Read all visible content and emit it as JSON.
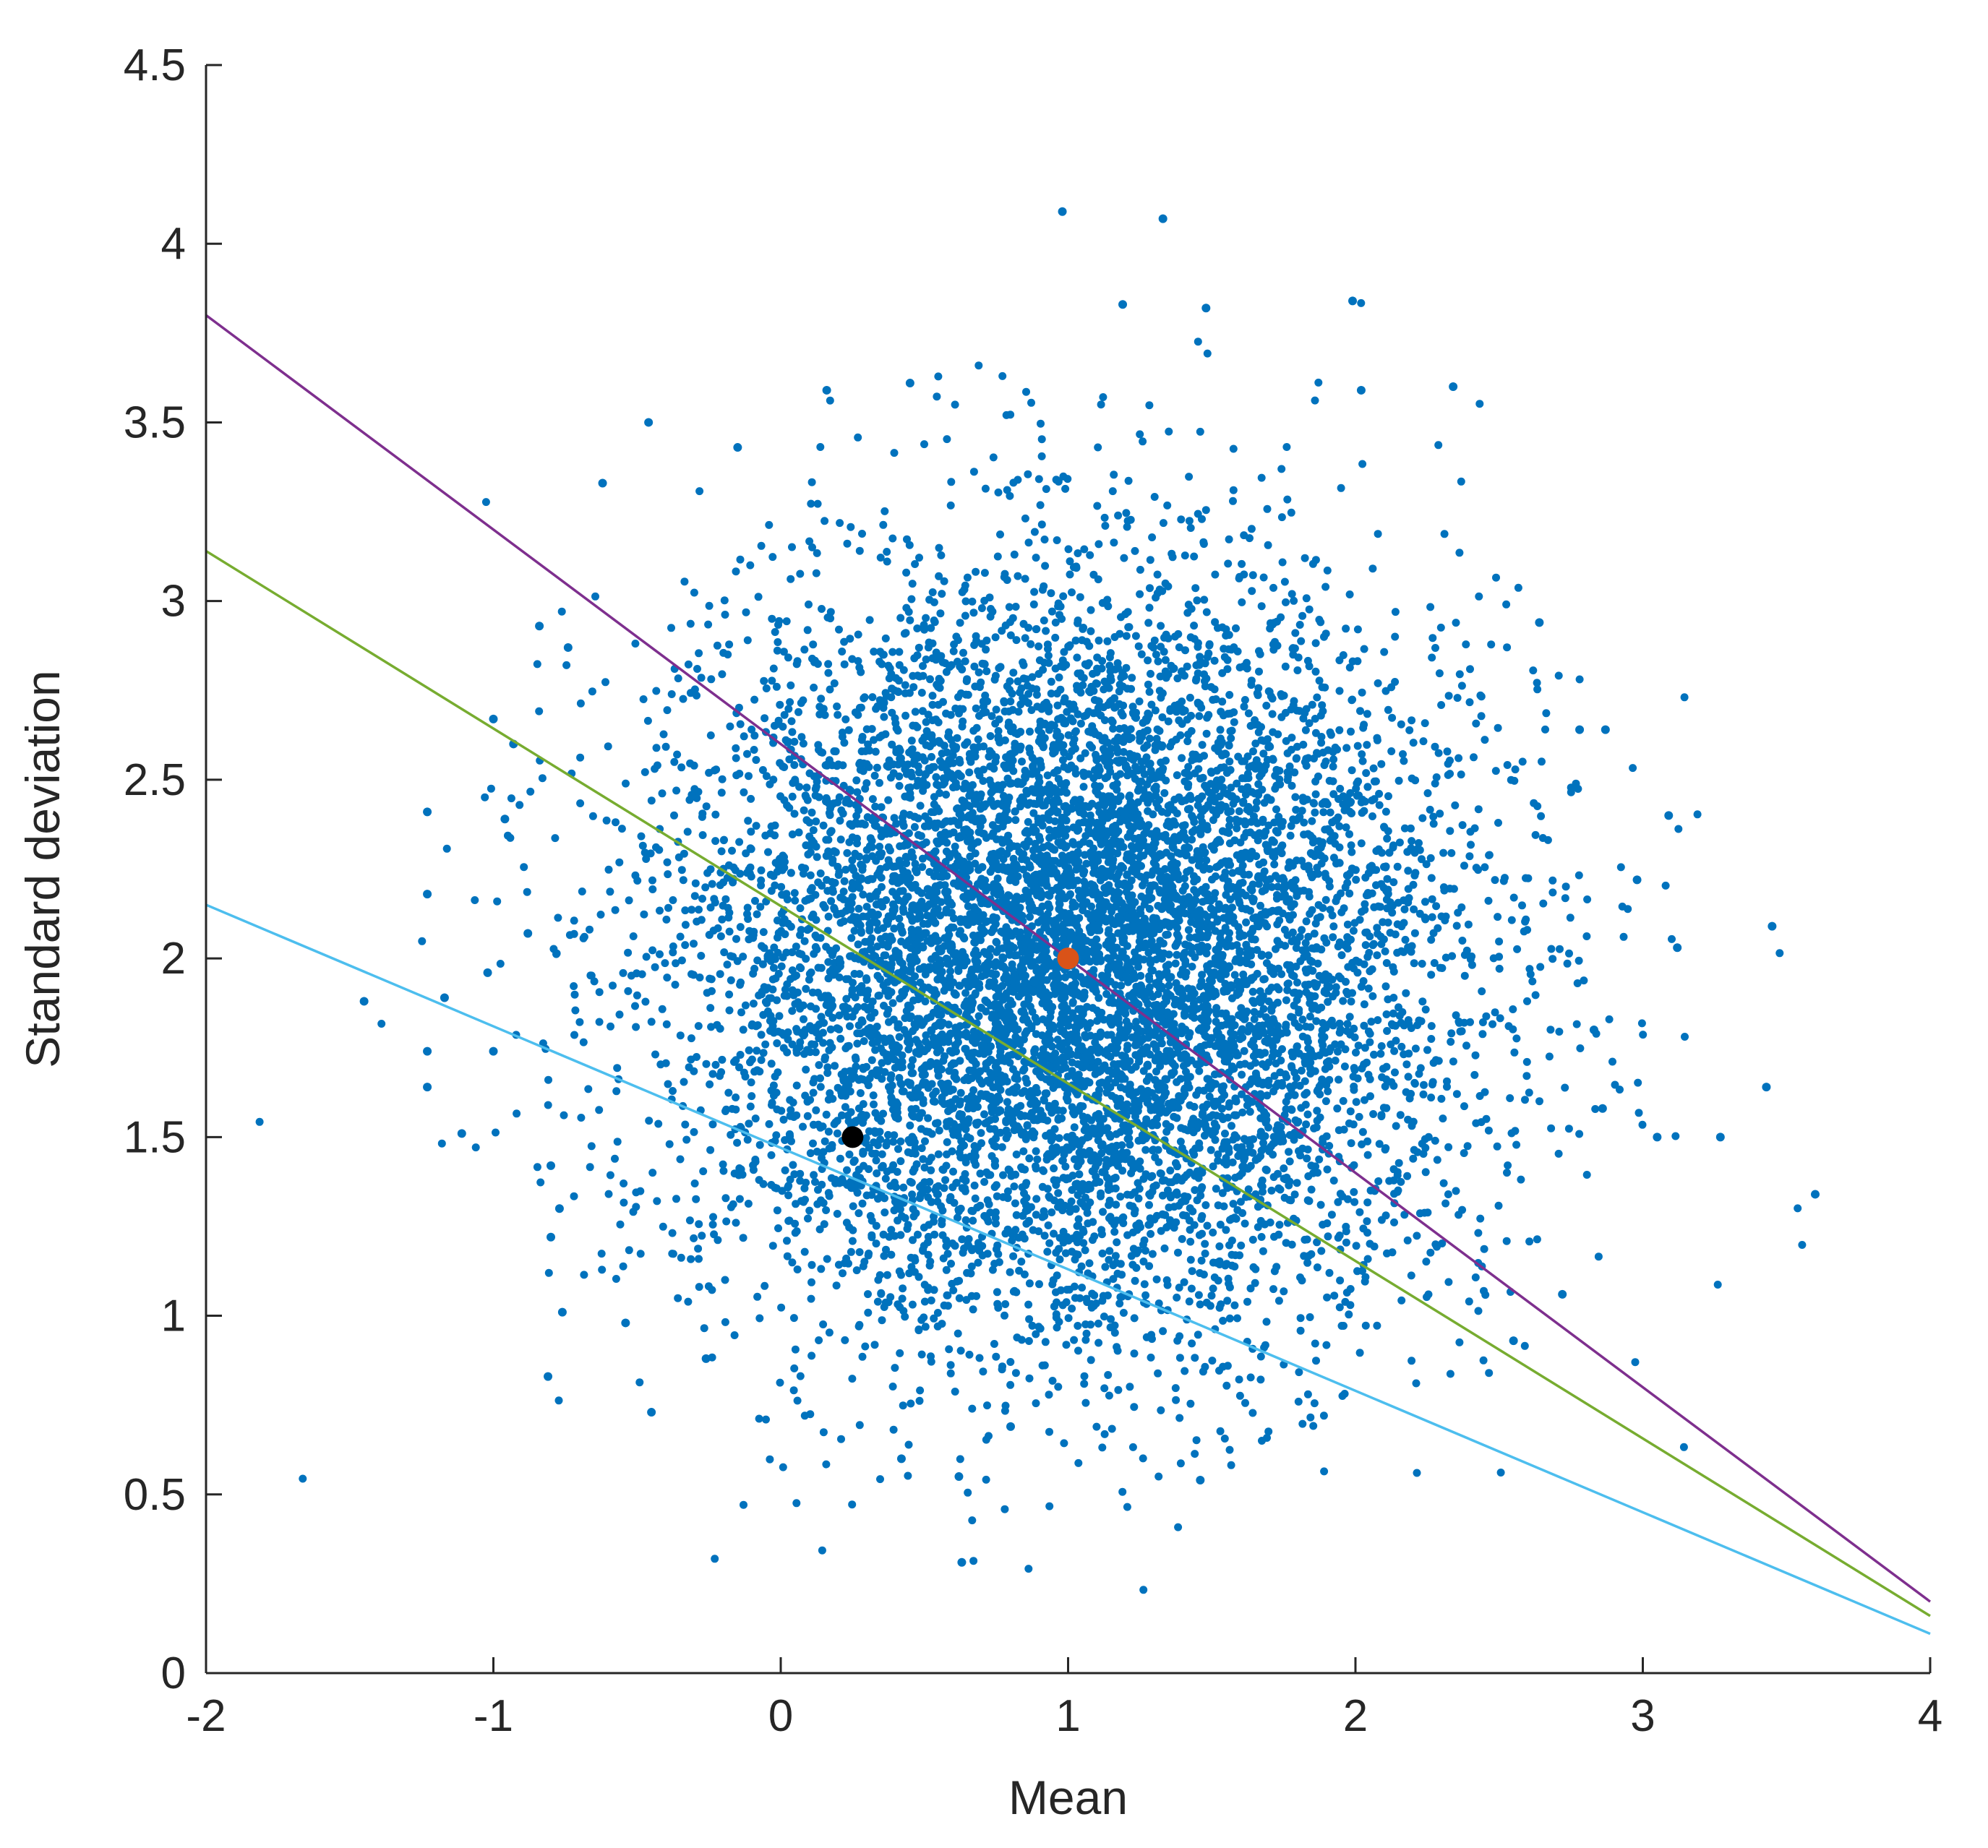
{
  "chart_data": {
    "type": "scatter",
    "xlabel": "Mean",
    "ylabel": "Standard deviation",
    "xlim": [
      -2,
      4
    ],
    "ylim": [
      0,
      4.5
    ],
    "xticks": [
      "-2",
      "-1",
      "0",
      "1",
      "2",
      "3",
      "4"
    ],
    "yticks": [
      "0",
      "0.5",
      "1",
      "1.5",
      "2",
      "2.5",
      "3",
      "3.5",
      "4",
      "4.5"
    ],
    "grid": false,
    "legend": "none",
    "cloud": {
      "color": "#0072BD",
      "count": 9000,
      "mean_x": 1.0,
      "mean_y": 2.0,
      "sd_x": 0.68,
      "sd_y": 0.52
    },
    "scatter_points": [
      {
        "x": 0.98,
        "y": 4.09
      },
      {
        "x": 1.33,
        "y": 4.07
      },
      {
        "x": 1.19,
        "y": 3.83
      },
      {
        "x": 1.48,
        "y": 3.82
      },
      {
        "x": 1.99,
        "y": 3.84
      },
      {
        "x": 2.34,
        "y": 3.6
      },
      {
        "x": 2.02,
        "y": 3.59
      },
      {
        "x": 0.16,
        "y": 3.59
      },
      {
        "x": 0.45,
        "y": 3.61
      },
      {
        "x": -0.46,
        "y": 3.5
      },
      {
        "x": -0.62,
        "y": 3.33
      },
      {
        "x": -0.15,
        "y": 3.43
      },
      {
        "x": -0.84,
        "y": 2.93
      },
      {
        "x": -0.74,
        "y": 2.87
      },
      {
        "x": -1.0,
        "y": 2.67
      },
      {
        "x": -0.93,
        "y": 2.6
      },
      {
        "x": -1.23,
        "y": 2.41
      },
      {
        "x": -0.96,
        "y": 2.39
      },
      {
        "x": -1.23,
        "y": 2.18
      },
      {
        "x": -0.88,
        "y": 2.07
      },
      {
        "x": -1.02,
        "y": 1.96
      },
      {
        "x": -1.45,
        "y": 1.88
      },
      {
        "x": -1.17,
        "y": 1.89
      },
      {
        "x": -1.23,
        "y": 1.74
      },
      {
        "x": -1.0,
        "y": 1.74
      },
      {
        "x": -1.23,
        "y": 1.64
      },
      {
        "x": -1.11,
        "y": 1.51
      },
      {
        "x": -0.8,
        "y": 1.42
      },
      {
        "x": -0.77,
        "y": 1.3
      },
      {
        "x": -0.8,
        "y": 1.22
      },
      {
        "x": -0.76,
        "y": 1.01
      },
      {
        "x": -0.81,
        "y": 0.83
      },
      {
        "x": -0.45,
        "y": 0.73
      },
      {
        "x": -0.54,
        "y": 0.98
      },
      {
        "x": -0.26,
        "y": 0.88
      },
      {
        "x": 0.62,
        "y": 0.55
      },
      {
        "x": 0.63,
        "y": 0.31
      },
      {
        "x": 1.46,
        "y": 0.54
      },
      {
        "x": 0.42,
        "y": 0.6
      },
      {
        "x": 0.8,
        "y": 0.69
      },
      {
        "x": 3.09,
        "y": 2.4
      },
      {
        "x": 3.45,
        "y": 2.09
      },
      {
        "x": 3.12,
        "y": 2.03
      },
      {
        "x": 3.05,
        "y": 1.5
      },
      {
        "x": 3.27,
        "y": 1.5
      },
      {
        "x": 3.43,
        "y": 1.64
      },
      {
        "x": 3.6,
        "y": 1.34
      },
      {
        "x": 2.87,
        "y": 2.64
      },
      {
        "x": 2.78,
        "y": 2.64
      },
      {
        "x": 2.64,
        "y": 2.94
      },
      {
        "x": 2.55,
        "y": 0.93
      },
      {
        "x": 2.72,
        "y": 1.06
      },
      {
        "x": 2.83,
        "y": 1.8
      },
      {
        "x": 2.98,
        "y": 2.22
      },
      {
        "x": 2.86,
        "y": 1.58
      }
    ],
    "lines": [
      {
        "color": "#7E2F8E",
        "x": [
          -2,
          4
        ],
        "y": [
          3.8,
          0.2
        ]
      },
      {
        "color": "#77AC30",
        "x": [
          -2,
          4
        ],
        "y": [
          3.14,
          0.16
        ]
      },
      {
        "color": "#4DBEEE",
        "x": [
          -2,
          4
        ],
        "y": [
          2.15,
          0.11
        ]
      }
    ],
    "markers": [
      {
        "x": 1.0,
        "y": 2.0,
        "color": "#D95319"
      },
      {
        "x": 0.25,
        "y": 1.5,
        "color": "#000000"
      }
    ],
    "axis_color": "#262626"
  }
}
